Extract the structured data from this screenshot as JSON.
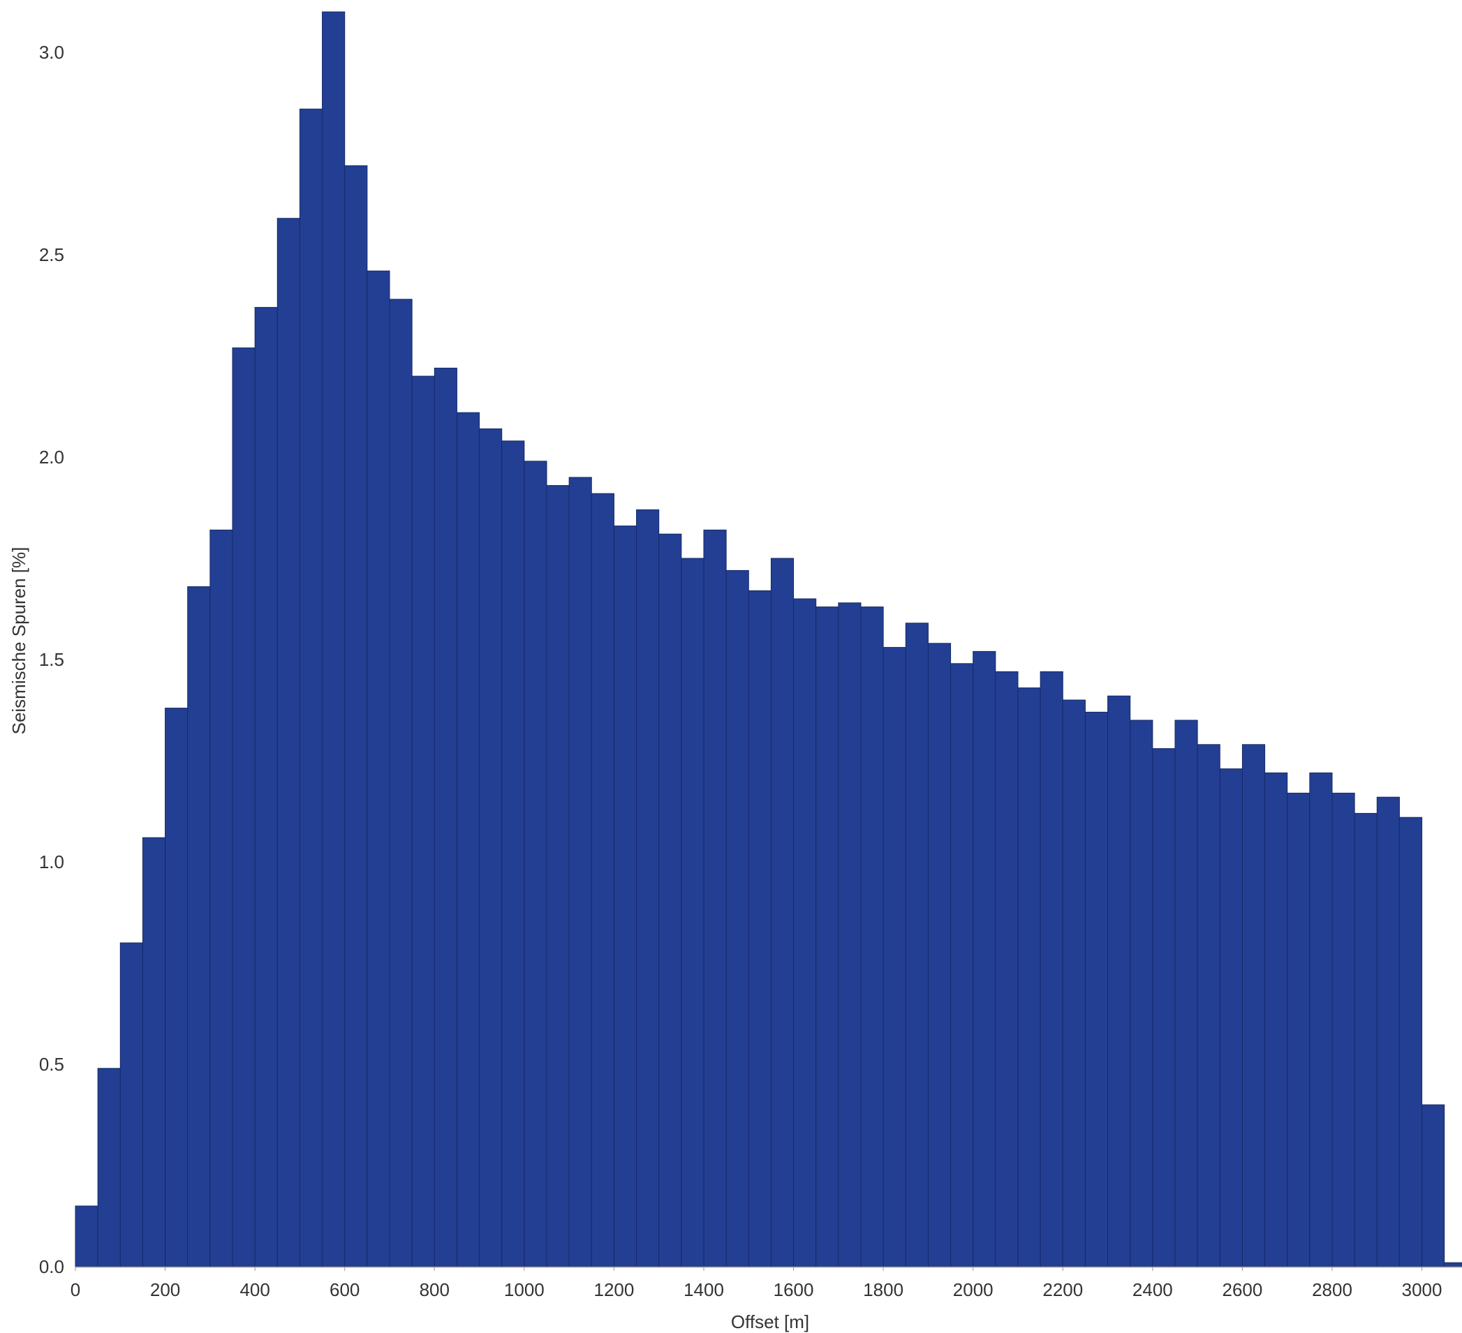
{
  "chart_data": {
    "type": "bar",
    "xlabel": "Offset [m]",
    "ylabel": "Seismische Spuren [%]",
    "bin_width": 50,
    "bin_start": 0,
    "x_ticks": [
      0,
      200,
      400,
      600,
      800,
      1000,
      1200,
      1400,
      1600,
      1800,
      2000,
      2200,
      2400,
      2600,
      2800,
      3000
    ],
    "y_ticks": [
      "0.0",
      "0.5",
      "1.0",
      "1.5",
      "2.0",
      "2.5",
      "3.0"
    ],
    "xlim": [
      0,
      3100
    ],
    "ylim": [
      0,
      3.1
    ],
    "grid": false,
    "bar_color": "#233F93",
    "values": [
      0.15,
      0.49,
      0.8,
      1.06,
      1.38,
      1.68,
      1.82,
      2.27,
      2.37,
      2.59,
      2.86,
      3.1,
      2.72,
      2.46,
      2.39,
      2.2,
      2.22,
      2.11,
      2.07,
      2.04,
      1.99,
      1.93,
      1.95,
      1.91,
      1.83,
      1.87,
      1.81,
      1.75,
      1.82,
      1.72,
      1.67,
      1.75,
      1.65,
      1.63,
      1.64,
      1.63,
      1.53,
      1.59,
      1.54,
      1.49,
      1.52,
      1.47,
      1.43,
      1.47,
      1.4,
      1.37,
      1.41,
      1.35,
      1.28,
      1.35,
      1.29,
      1.23,
      1.29,
      1.22,
      1.17,
      1.22,
      1.17,
      1.12,
      1.16,
      1.11,
      0.4,
      0.01
    ]
  }
}
